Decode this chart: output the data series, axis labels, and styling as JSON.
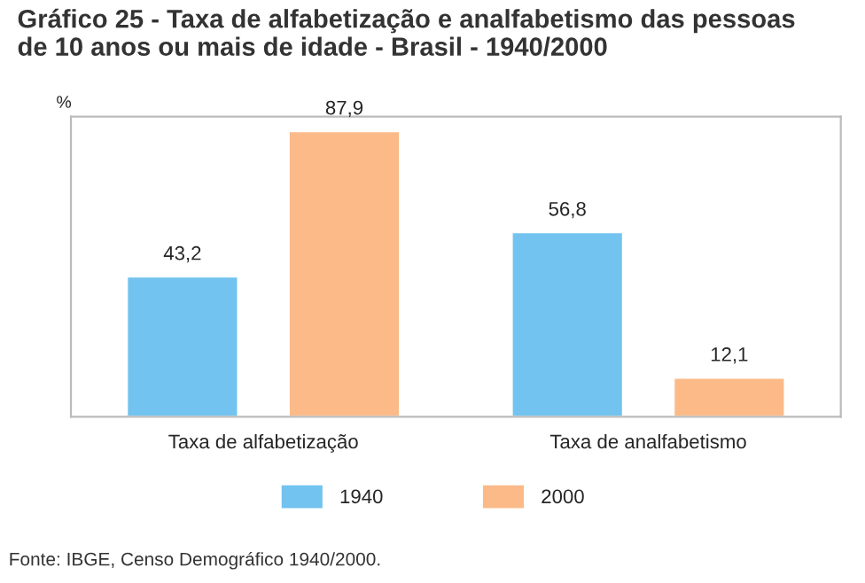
{
  "chart_data": {
    "type": "bar",
    "title": "Gráfico 25 - Taxa de alfabetização e analfabetismo das pessoas\nde 10 anos ou mais de idade - Brasil - 1940/2000",
    "ylabel": "%",
    "categories": [
      "Taxa de alfabetização",
      "Taxa de analfabetismo"
    ],
    "series": [
      {
        "name": "1940",
        "color": "#72c3ef",
        "values": [
          43.2,
          56.8
        ],
        "value_labels": [
          "43,2",
          "56,8"
        ]
      },
      {
        "name": "2000",
        "color": "#fbba88",
        "values": [
          87.9,
          12.1
        ],
        "value_labels": [
          "87,9",
          "12,1"
        ]
      }
    ],
    "tick_labels": "x",
    "legend": "bottom",
    "annotations": [
      "Fonte: IBGE, Censo Demográfico 1940/2000."
    ]
  }
}
